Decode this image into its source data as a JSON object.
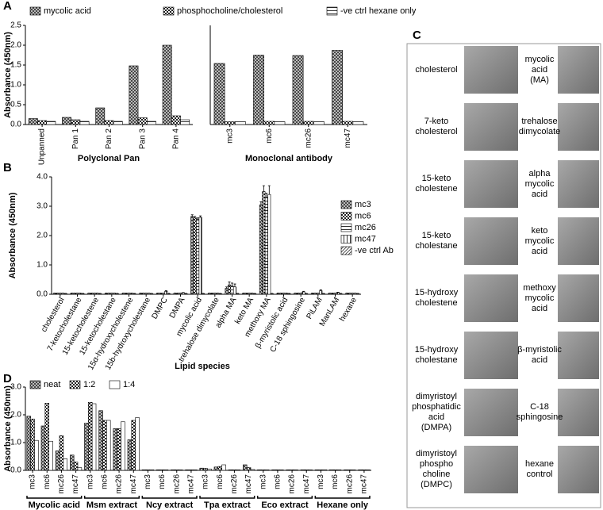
{
  "panel_labels": [
    "A",
    "B",
    "C",
    "D"
  ],
  "chart_data": [
    {
      "type": "bar",
      "ylabel": "Absorbance (450nm)",
      "xlabel": "Polyclonal Pan",
      "categories": [
        "Unpanned",
        "Pan 1",
        "Pan 2",
        "Pan 3",
        "Pan 4"
      ],
      "ylim": [
        0,
        2.5
      ],
      "yticks": [
        {
          "value": 0,
          "label": "0.0"
        },
        0.5,
        {
          "value": 1,
          "label": "1.0"
        },
        1.5,
        {
          "value": 2,
          "label": "2.0"
        },
        2.5
      ],
      "series": [
        {
          "name": "mycolic acid",
          "color": "#444444",
          "pattern": "dense",
          "values": [
            0.15,
            0.18,
            0.42,
            1.48,
            2.0
          ]
        },
        {
          "name": "phosphocholine/cholesterol",
          "color": "#222222",
          "pattern": "check",
          "values": [
            0.1,
            0.12,
            0.1,
            0.17,
            0.22
          ]
        },
        {
          "name": "-ve ctrl hexane only",
          "color": "#333333",
          "pattern": "hline",
          "values": [
            0.08,
            0.08,
            0.08,
            0.08,
            0.12
          ]
        }
      ]
    },
    {
      "type": "bar",
      "xlabel": "Monoclonal antibody",
      "categories": [
        "mc3",
        "mc6",
        "mc26",
        "mc47"
      ],
      "ylim": [
        0,
        2.5
      ],
      "series": [
        {
          "color": "#444444",
          "pattern": "dense",
          "values": [
            1.54,
            1.75,
            1.74,
            1.87
          ]
        },
        {
          "color": "#222222",
          "pattern": "check",
          "values": [
            0.07,
            0.08,
            0.08,
            0.08
          ]
        },
        {
          "color": "#333333",
          "pattern": "hline",
          "values": [
            0.07,
            0.07,
            0.07,
            0.07
          ]
        }
      ]
    },
    {
      "type": "bar",
      "ylabel": "Absorbance (450nm)",
      "xlabel": "Lipid species",
      "categories": [
        "cholesterol",
        "7-ketocholestane",
        "15-ketocholestene",
        "15-ketocholestane",
        "15α-hydroxycholestene",
        "15b-hydroxycholestane",
        "DMPC",
        "DMPA",
        "mycolic acid",
        "trehalose dimycolate",
        "alpha MA",
        "keto MA",
        "methoxy MA",
        "β-myristolic acid",
        "C-18 sphingosine",
        "PiLAM",
        "ManLAM",
        "hexane"
      ],
      "ylim": [
        0,
        4
      ],
      "yticks": [
        {
          "value": 0,
          "label": "0.0"
        },
        {
          "value": 1,
          "label": "1.0"
        },
        {
          "value": 2,
          "label": "2.0"
        },
        {
          "value": 3,
          "label": "3.0"
        },
        {
          "value": 4,
          "label": "4.0"
        }
      ],
      "series": [
        {
          "name": "mc3",
          "color": "#444444",
          "pattern": "dense",
          "values": [
            0.03,
            0.03,
            0.03,
            0.03,
            0.03,
            0.03,
            0.03,
            0.03,
            2.65,
            0.03,
            0.2,
            0.03,
            3.05,
            0.03,
            0.03,
            0.03,
            0.03,
            0.03
          ],
          "errors": [
            0.01,
            0.01,
            0.01,
            0.01,
            0.01,
            0.01,
            0.01,
            0.01,
            0.06,
            0.01,
            0.05,
            0.01,
            0.1,
            0.01,
            0.01,
            0.01,
            0.01,
            0.01
          ]
        },
        {
          "name": "mc6",
          "color": "#222222",
          "pattern": "check",
          "values": [
            0.03,
            0.03,
            0.03,
            0.03,
            0.03,
            0.03,
            0.03,
            0.03,
            2.6,
            0.03,
            0.32,
            0.03,
            3.5,
            0.03,
            0.03,
            0.03,
            0.03,
            0.03
          ],
          "errors": [
            0.01,
            0.01,
            0.01,
            0.01,
            0.01,
            0.01,
            0.01,
            0.01,
            0.05,
            0.01,
            0.1,
            0.01,
            0.2,
            0.01,
            0.01,
            0.01,
            0.01,
            0.01
          ]
        },
        {
          "name": "mc26",
          "color": "#333333",
          "pattern": "hline",
          "values": [
            0.03,
            0.03,
            0.03,
            0.03,
            0.03,
            0.03,
            0.03,
            0.03,
            2.55,
            0.03,
            0.28,
            0.03,
            3.3,
            0.03,
            0.03,
            0.03,
            0.03,
            0.03
          ],
          "errors": [
            0.01,
            0.01,
            0.01,
            0.01,
            0.01,
            0.01,
            0.01,
            0.01,
            0.05,
            0.01,
            0.1,
            0.01,
            0.15,
            0.01,
            0.01,
            0.01,
            0.01,
            0.01
          ]
        },
        {
          "name": "mc47",
          "color": "#333333",
          "pattern": "vline",
          "values": [
            0.03,
            0.03,
            0.03,
            0.03,
            0.03,
            0.03,
            0.1,
            0.05,
            2.62,
            0.03,
            0.25,
            0.03,
            3.4,
            0.03,
            0.08,
            0.12,
            0.06,
            0.03
          ],
          "errors": [
            0.01,
            0.01,
            0.01,
            0.01,
            0.01,
            0.01,
            0.02,
            0.01,
            0.05,
            0.01,
            0.1,
            0.01,
            0.3,
            0.01,
            0.02,
            0.03,
            0.01,
            0.01
          ]
        },
        {
          "name": "-ve ctrl Ab",
          "color": "#333333",
          "pattern": "diag",
          "values": [
            0.02,
            0.02,
            0.02,
            0.02,
            0.02,
            0.02,
            0.02,
            0.02,
            0.02,
            0.02,
            0.02,
            0.02,
            0.02,
            0.02,
            0.02,
            0.02,
            0.02,
            0.02
          ],
          "errors": [
            0.01,
            0.01,
            0.01,
            0.01,
            0.01,
            0.01,
            0.01,
            0.01,
            0.01,
            0.01,
            0.01,
            0.01,
            0.01,
            0.01,
            0.01,
            0.01,
            0.01,
            0.01
          ]
        }
      ]
    },
    {
      "type": "bar",
      "ylabel": "Absorbance (450nm)",
      "categories": [
        "mc3",
        "mc6",
        "mc26",
        "mc47",
        "mc3",
        "mc6",
        "mc26",
        "mc47",
        "mc3",
        "mc6",
        "mc26",
        "mc47",
        "mc3",
        "mc6",
        "mc26",
        "mc47",
        "mc3",
        "mc6",
        "mc26",
        "mc47",
        "mc3",
        "mc6",
        "mc26",
        "mc47"
      ],
      "groups": [
        "Mycolic acid",
        "Msm extract",
        "Ncy extract",
        "Tpa extract",
        "Eco extract",
        "Hexane only"
      ],
      "ylim": [
        0,
        3
      ],
      "yticks": [
        {
          "value": 0,
          "label": "0.0"
        },
        {
          "value": 1,
          "label": "1.0"
        },
        {
          "value": 2,
          "label": "2.0"
        },
        {
          "value": 3,
          "label": "3.0"
        }
      ],
      "series": [
        {
          "name": "neat",
          "color": "#444444",
          "pattern": "dense",
          "values": [
            1.95,
            1.6,
            0.7,
            0.55,
            1.7,
            2.15,
            1.5,
            1.1,
            0.02,
            0.02,
            0.02,
            0.02,
            0.08,
            0.12,
            0.02,
            0.2,
            0.02,
            0.02,
            0.02,
            0.02,
            0.02,
            0.02,
            0.02,
            0.02
          ]
        },
        {
          "name": "1:2",
          "color": "#222222",
          "pattern": "check",
          "values": [
            1.85,
            2.42,
            1.25,
            0.3,
            2.45,
            1.8,
            1.5,
            1.8,
            0.02,
            0.02,
            0.02,
            0.02,
            0.07,
            0.14,
            0.02,
            0.1,
            0.02,
            0.02,
            0.02,
            0.02,
            0.02,
            0.02,
            0.02,
            0.02
          ]
        },
        {
          "name": "1:4",
          "color": "#ffffff",
          "pattern": "plain",
          "values": [
            1.08,
            1.05,
            0.42,
            0.1,
            2.4,
            1.8,
            1.75,
            1.9,
            0.02,
            0.02,
            0.02,
            0.02,
            0.05,
            0.2,
            0.02,
            0.03,
            0.02,
            0.02,
            0.02,
            0.02,
            0.02,
            0.02,
            0.02,
            0.02
          ]
        }
      ]
    }
  ],
  "micrographs": {
    "left": [
      "cholesterol",
      "7-keto\ncholesterol",
      "15-keto\ncholestene",
      "15-keto\ncholestane",
      "15-hydroxy\ncholestene",
      "15-hydroxy\ncholestane",
      "dimyristoyl\nphosphatidic\nacid\n(DMPA)",
      "dimyristoyl\nphospho\ncholine\n(DMPC)"
    ],
    "right": [
      "mycolic\nacid\n(MA)",
      "trehalose\ndimycolate",
      "alpha\nmycolic\nacid",
      "keto\nmycolic\nacid",
      "methoxy\nmycolic\nacid",
      "β-myristolic\nacid",
      "C-18\nsphingosine",
      "hexane\ncontrol"
    ]
  }
}
